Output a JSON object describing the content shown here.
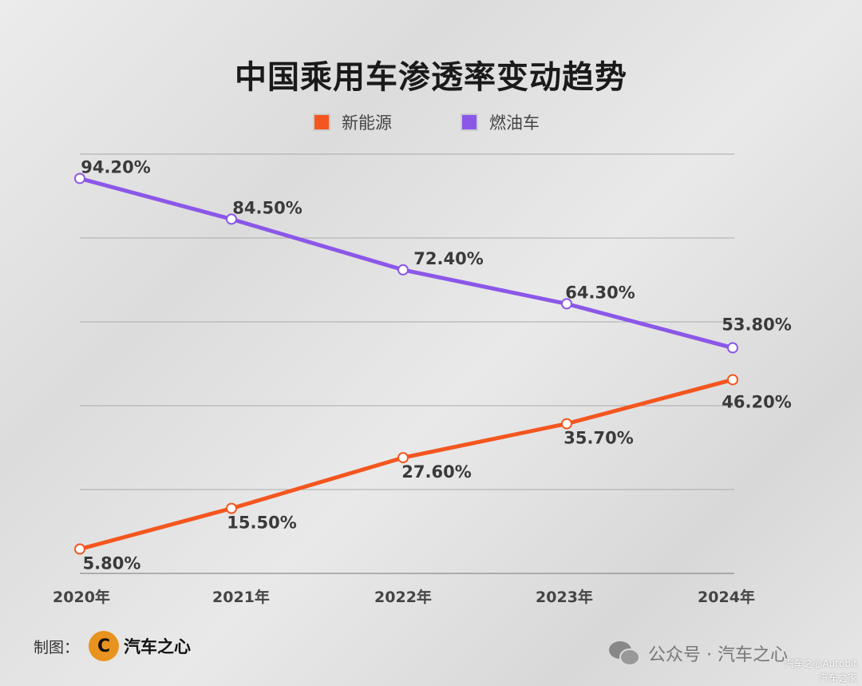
{
  "chart_data": {
    "type": "line",
    "title": "中国乘用车渗透率变动趋势",
    "categories": [
      "2020年",
      "2021年",
      "2022年",
      "2023年",
      "2024年"
    ],
    "series": [
      {
        "name": "新能源",
        "color": "#f4561f",
        "values": [
          5.8,
          15.5,
          27.6,
          35.7,
          46.2
        ],
        "labels": [
          "5.80%",
          "15.50%",
          "27.60%",
          "35.70%",
          "46.20%"
        ]
      },
      {
        "name": "燃油车",
        "color": "#8b57e8",
        "values": [
          94.2,
          84.5,
          72.4,
          64.3,
          53.8
        ],
        "labels": [
          "94.20%",
          "84.50%",
          "72.40%",
          "64.30%",
          "53.80%"
        ]
      }
    ],
    "ylim": [
      0,
      100
    ],
    "grid": true,
    "legend": "top"
  },
  "footer": {
    "credit_label": "制图：",
    "logo_text": "汽车之心",
    "wechat_text": "公众号 · 汽车之心",
    "watermark_1": "汽车之心Autobit",
    "watermark_2": "汽车之家"
  }
}
